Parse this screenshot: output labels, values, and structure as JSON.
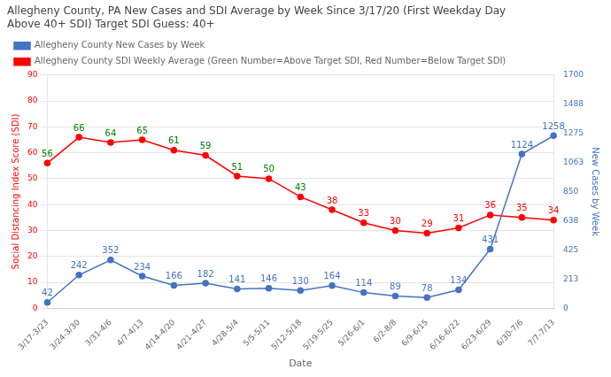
{
  "chart_data": {
    "type": "line",
    "title": "Allegheny County, PA New Cases and SDI Average by Week Since 3/17/20 (First Weekday Day\nAbove 40+ SDI) Target SDI Guess: 40+",
    "x_label": "Date",
    "y_label": "Social Distancing Index Score (SDI)",
    "y2_label": "New Cases by Week",
    "categories": [
      "3/17-3/23",
      "3/24-3/30",
      "3/31-4/6",
      "4/7-4/13",
      "4/14-4/20",
      "4/21-4/27",
      "4/28-5/4",
      "5/5-5/11",
      "5/12-5/18",
      "5/19-5/25",
      "5/26-6/1",
      "6/2-8/8",
      "6/9-6/15",
      "6/16-6/22",
      "6/23-6/29",
      "6/30-7/6",
      "7/7-7/13"
    ],
    "series": [
      {
        "name": "Allegheny County New Cases by Week",
        "color": "#4472c4",
        "axis": "y2",
        "marker": "circle",
        "values": [
          42,
          242,
          352,
          234,
          166,
          182,
          141,
          146,
          130,
          164,
          114,
          89,
          78,
          134,
          431,
          1124,
          1258
        ]
      },
      {
        "name": "Allegheny County SDI Weekly Average (Green Number=Above Target SDI, Red Number=Below Target SDI)",
        "color": "#ff0000",
        "axis": "y",
        "marker": "circle",
        "values": [
          56,
          66,
          64,
          65,
          61,
          59,
          51,
          50,
          43,
          38,
          33,
          30,
          29,
          31,
          36,
          35,
          34
        ],
        "label_colors": [
          "green",
          "green",
          "green",
          "green",
          "green",
          "green",
          "green",
          "green",
          "green",
          "red",
          "red",
          "red",
          "red",
          "red",
          "red",
          "red",
          "red"
        ]
      }
    ],
    "ylim": [
      0,
      90
    ],
    "yticks": [
      0,
      10,
      20,
      30,
      40,
      50,
      60,
      70,
      80,
      90
    ],
    "y2lim": [
      0,
      1700
    ],
    "y2ticks": [
      0,
      213,
      425,
      638,
      850,
      1063,
      1275,
      1488,
      1700
    ],
    "grid": true,
    "data_labels": true,
    "legend": "top"
  }
}
